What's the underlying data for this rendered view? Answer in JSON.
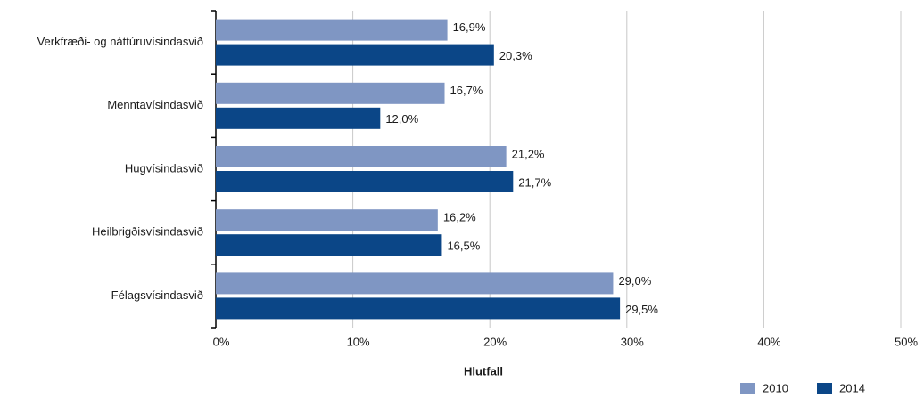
{
  "chart_data": {
    "type": "bar",
    "orientation": "horizontal",
    "categories": [
      "Verkfræði- og náttúruvísindasvið",
      "Menntavísindasvið",
      "Hugvísindasvið",
      "Heilbrigðisvísindasvið",
      "Félagsvísindasvið"
    ],
    "series": [
      {
        "name": "2010",
        "color": "#7f96c3",
        "values": [
          16.9,
          16.7,
          21.2,
          16.2,
          29.0
        ],
        "value_labels": [
          "16,9%",
          "16,7%",
          "21,2%",
          "16,2%",
          "29,0%"
        ]
      },
      {
        "name": "2014",
        "color": "#0b4687",
        "values": [
          20.3,
          12.0,
          21.7,
          16.5,
          29.5
        ],
        "value_labels": [
          "20,3%",
          "12,0%",
          "21,7%",
          "16,5%",
          "29,5%"
        ]
      }
    ],
    "xlabel": "Hlutfall",
    "xlim": [
      0,
      50
    ],
    "xticks": [
      {
        "value": 0,
        "label": "0%"
      },
      {
        "value": 10,
        "label": "10%"
      },
      {
        "value": 20,
        "label": "20%"
      },
      {
        "value": 30,
        "label": "30%"
      },
      {
        "value": 40,
        "label": "40%"
      },
      {
        "value": 50,
        "label": "50%"
      }
    ],
    "grid": true,
    "legend": "bottom-right"
  }
}
